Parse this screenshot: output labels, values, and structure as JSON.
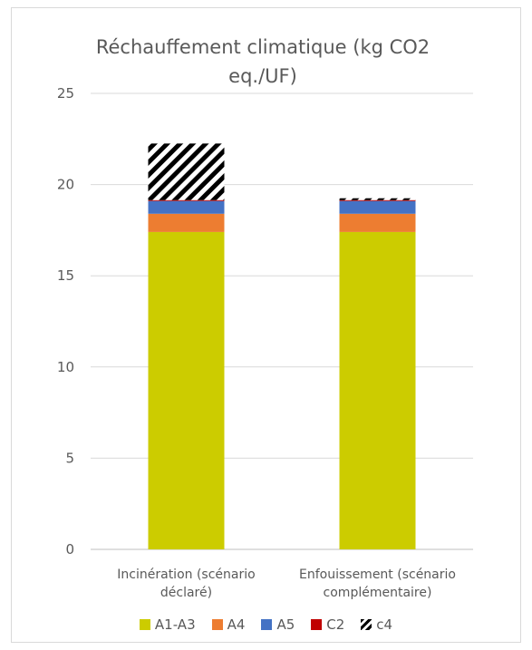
{
  "chart_data": {
    "type": "bar",
    "stacked": true,
    "title": "Réchauffement climatique (kg CO2 eq./UF)",
    "categories": [
      "Incinération (scénario déclaré)",
      "Enfouissement (scénario complémentaire)"
    ],
    "category_lines": [
      [
        "Incinération (scénario",
        "déclaré)"
      ],
      [
        "Enfouissement (scénario",
        "complémentaire)"
      ]
    ],
    "series": [
      {
        "name": "A1-A3",
        "values": [
          17.4,
          17.4
        ],
        "color": "#cccc00"
      },
      {
        "name": "A4",
        "values": [
          1.0,
          1.0
        ],
        "color": "#ed7d31"
      },
      {
        "name": "A5",
        "values": [
          0.7,
          0.7
        ],
        "color": "#4472c4"
      },
      {
        "name": "C2",
        "values": [
          0.05,
          0.05
        ],
        "color": "#c00000"
      },
      {
        "name": "c4",
        "values": [
          3.1,
          0.1
        ],
        "color": "#000000",
        "pattern": "diagonal-stripes"
      }
    ],
    "ylim": [
      0,
      25
    ],
    "yticks": [
      0,
      5,
      10,
      15,
      20,
      25
    ],
    "grid": true,
    "legend_position": "bottom"
  }
}
